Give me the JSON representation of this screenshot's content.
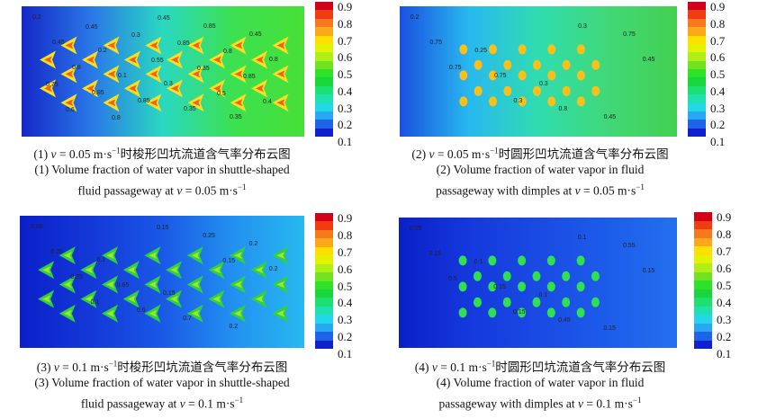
{
  "colorbar": {
    "labels": [
      "0.9",
      "0.8",
      "0.7",
      "0.6",
      "0.5",
      "0.4",
      "0.3",
      "0.2",
      "0.1"
    ],
    "colors": [
      "#d4001a",
      "#f03c10",
      "#f7781e",
      "#fba81a",
      "#fde000",
      "#e2f200",
      "#b0ee18",
      "#72e21e",
      "#2ee22a",
      "#18d63c",
      "#1ee070",
      "#1ee0b0",
      "#22d8e8",
      "#28a8f2",
      "#1e64e8",
      "#1020d0"
    ]
  },
  "panels": [
    {
      "caption_cn": "时梭形凹坑流道含气率分布云图",
      "caption_num": "(1)",
      "v": "0.05",
      "caption_en1": "(1) Volume fraction of water vapor in shuttle-shaped",
      "caption_en2_pre": "fluid passageway at ",
      "labels": [
        "0.2",
        "0.2",
        "0.3",
        "0.35",
        "0.45",
        "0.1",
        "0.35",
        "0.45",
        "0.8",
        "0.85",
        "0.85",
        "0.8",
        "0.85",
        "0.45",
        "0.8",
        "0.75",
        "0.8",
        "0.85",
        "0.85",
        "0.6",
        "0.3",
        "0.35",
        "0.4",
        "0.45",
        "0.55",
        "0.5"
      ]
    },
    {
      "caption_cn": "时圆形凹坑流道含气率分布云图",
      "caption_num": "(2)",
      "v": "0.05",
      "caption_en1": "(2) Volume fraction of water vapor in fluid",
      "caption_en2_pre": "passageway with dimples at ",
      "labels": [
        "0.2",
        "0.25",
        "0.3",
        "0.45",
        "0.75",
        "0.75",
        "0.8",
        "0.75",
        "0.75",
        "0.3",
        "0.3",
        "0.45"
      ]
    },
    {
      "caption_cn": "时梭形凹坑流道含气率分布云图",
      "caption_num": "(3)",
      "v": "0.1",
      "caption_en1": "(3) Volume fraction of water vapor in shuttle-shaped",
      "caption_en2_pre": "fluid passageway at ",
      "labels": [
        "0.05",
        "0.1",
        "0.15",
        "0.2",
        "0.25",
        "0.65",
        "0.7",
        "0.2",
        "0.25",
        "0.6",
        "0.25",
        "0.2",
        "0.1",
        "0.15",
        "0.15"
      ]
    },
    {
      "caption_cn": "时圆形凹坑流道含气率分布云图",
      "caption_num": "(4)",
      "v": "0.1",
      "caption_en1": "(4) Volume fraction of water vapor in fluid",
      "caption_en2_pre": "passageway with dimples at ",
      "labels": [
        "0.05",
        "0.1",
        "0.1",
        "0.15",
        "0.15",
        "0.15",
        "0.45",
        "0.55",
        "0.5",
        "0.15",
        "0.1",
        "0.15"
      ]
    }
  ],
  "unit": "m·s",
  "unit_exp": "−1"
}
